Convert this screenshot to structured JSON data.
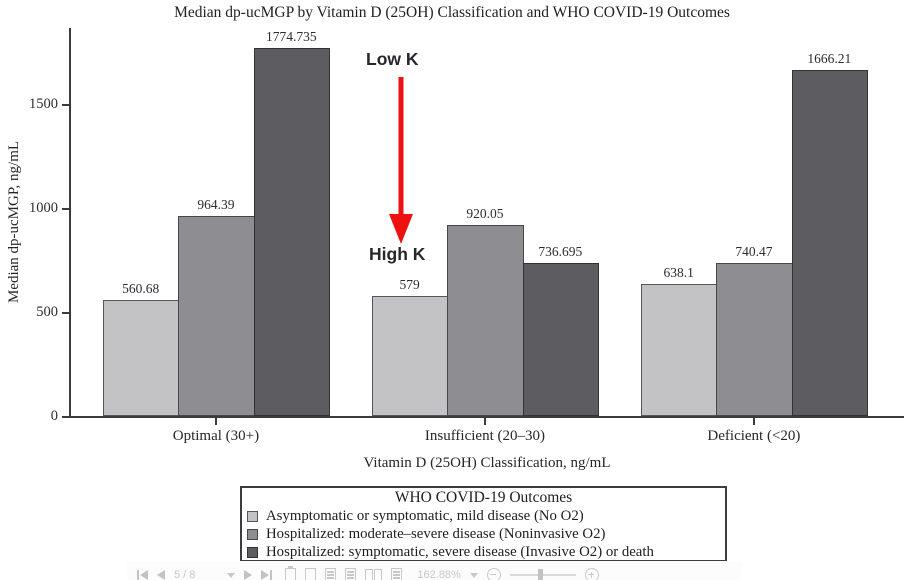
{
  "chart_data": {
    "type": "bar",
    "title": "Median dp-ucMGP by Vitamin D (25OH) Classification and WHO COVID-19 Outcomes",
    "xlabel": "Vitamin D (25OH) Classification, ng/mL",
    "ylabel": "Median dp-ucMGP, ng/mL",
    "categories": [
      "Optimal (30+)",
      "Insufficient (20–30)",
      "Deficient (<20)"
    ],
    "series": [
      {
        "name": "Asymptomatic or symptomatic, mild disease (No O2)",
        "color": "#c3c3c5",
        "border": "#55555a",
        "values": [
          560.68,
          579,
          638.1
        ],
        "labels": [
          "560.68",
          "579",
          "638.1"
        ]
      },
      {
        "name": "Hospitalized: moderate–severe disease (Noninvasive O2)",
        "color": "#8e8e92",
        "border": "#46464b",
        "values": [
          964.39,
          920.05,
          740.47
        ],
        "labels": [
          "964.39",
          "920.05",
          "740.47"
        ]
      },
      {
        "name": "Hospitalized: symptomatic, severe disease (Invasive O2) or death",
        "color": "#5c5c61",
        "border": "#323237",
        "values": [
          1774.735,
          736.695,
          1666.21
        ],
        "labels": [
          "1774.735",
          "736.695",
          "1666.21"
        ]
      }
    ],
    "yticks": [
      0,
      500,
      1000,
      1500
    ],
    "ylim": [
      0,
      1880
    ],
    "grid": false,
    "legend_position": "bottom",
    "legend_title": "WHO COVID-19 Outcomes",
    "annotations": [
      {
        "text": "Low K",
        "color": "#ec2565",
        "target": "Insufficient (20–30) group"
      },
      {
        "text": "High K",
        "color": "#ec2565",
        "target": "Insufficient (20–30) mild-disease bar"
      }
    ],
    "arrow_color": "#ee1111"
  },
  "legend": {
    "title": "WHO COVID-19 Outcomes"
  },
  "toolbar": {
    "page_indicator": "5 / 8",
    "zoom_level": "162.88%"
  }
}
